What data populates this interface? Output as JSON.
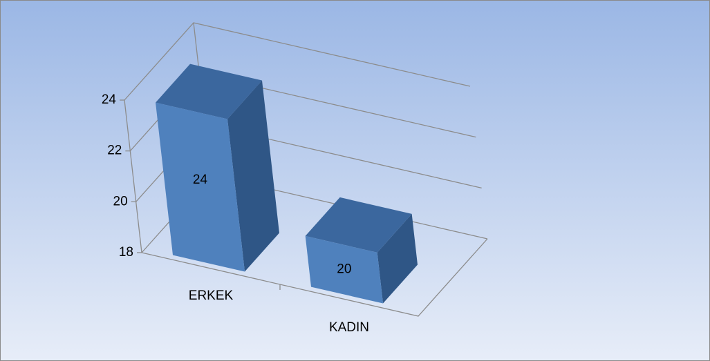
{
  "chart_data": {
    "type": "bar3d",
    "categories": [
      "ERKEK",
      "KADIN"
    ],
    "values": [
      24,
      20
    ],
    "color": "#4f81bd",
    "ylim": [
      18,
      24
    ],
    "yticks": [
      18,
      20,
      22,
      24
    ],
    "grid": true
  }
}
